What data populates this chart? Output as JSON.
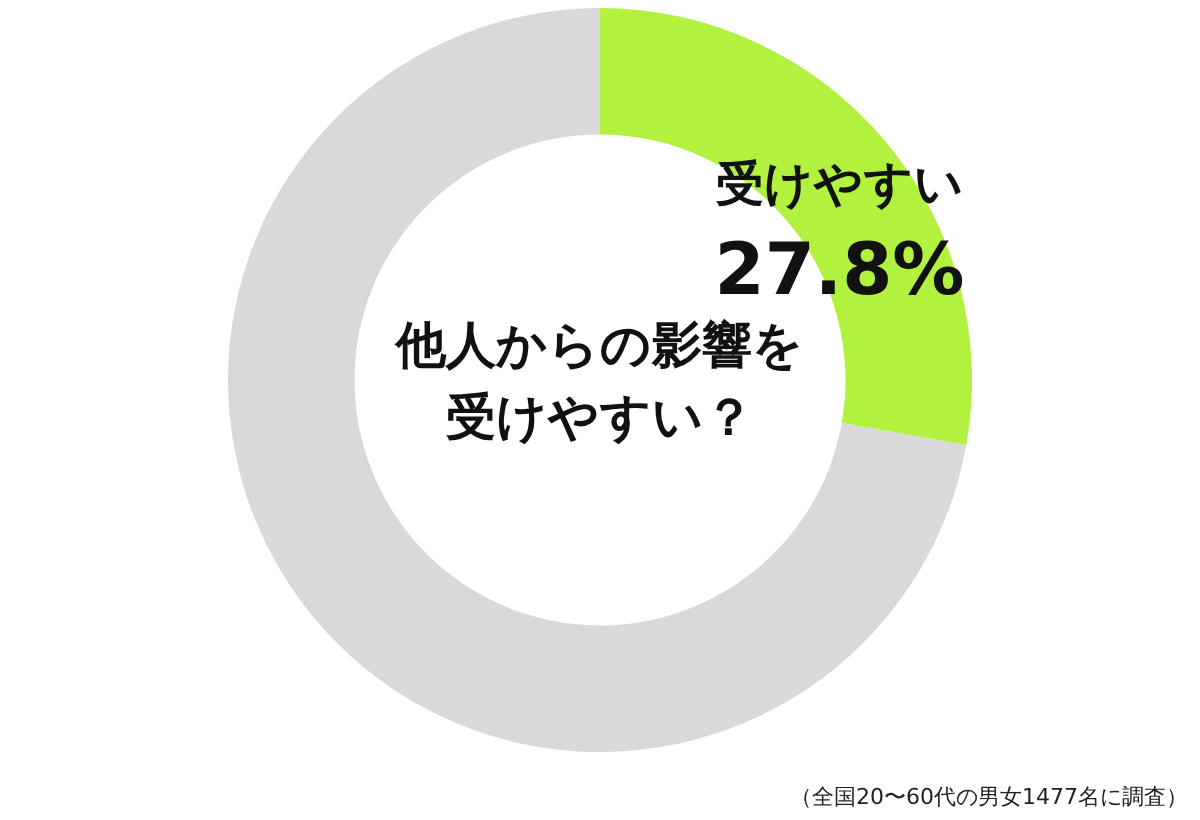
{
  "chart_data": {
    "type": "donut",
    "title": "他人からの影響を受けやすい？",
    "categories": [
      "受けやすい",
      null
    ],
    "values": [
      27.8,
      72.2
    ],
    "colors": [
      "#b2f23e",
      "#d9d9d9"
    ],
    "value_labels": [
      "27.8%",
      null
    ],
    "annotations": [
      "（全国20〜60代の男女1477名に調査）"
    ]
  }
}
